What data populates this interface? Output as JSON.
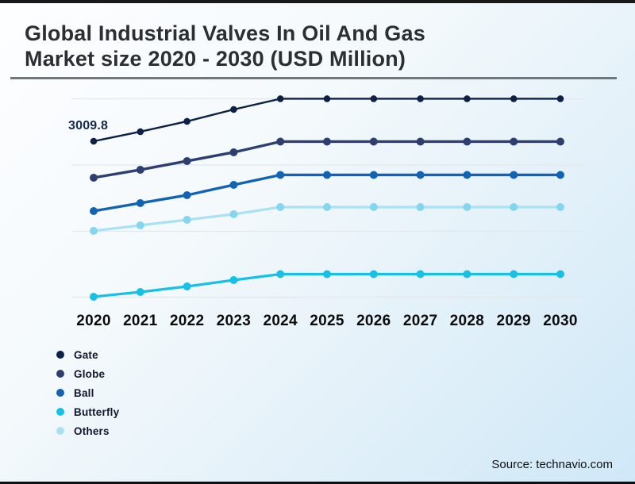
{
  "header": {
    "title_line1": "Global Industrial Valves In Oil And Gas",
    "title_line2": "Market size 2020 - 2030 (USD Million)"
  },
  "chart_data": {
    "type": "line",
    "title": "Global Industrial Valves In Oil And Gas Market size 2020 - 2030 (USD Million)",
    "unit": "USD Million",
    "x": [
      2020,
      2021,
      2022,
      2023,
      2024,
      2025,
      2026,
      2027,
      2028,
      2029,
      2030
    ],
    "series": [
      {
        "name": "Gate",
        "color": "#0c2146",
        "values": [
          3009.8,
          3154,
          3310,
          3490,
          3652,
          3652,
          3652,
          3652,
          3652,
          3652,
          3652
        ]
      },
      {
        "name": "Globe",
        "color": "#2e3e70",
        "values": [
          2458,
          2578,
          2710,
          2842,
          3004,
          3004,
          3004,
          3004,
          3004,
          3004,
          3004
        ]
      },
      {
        "name": "Ball",
        "color": "#1363b4",
        "values": [
          1954,
          2074,
          2194,
          2350,
          2500,
          2500,
          2500,
          2500,
          2500,
          2500,
          2500
        ]
      },
      {
        "name": "Butterfly",
        "color": "#17c0e5",
        "values": [
          658,
          730,
          814,
          910,
          1000,
          1000,
          1000,
          1000,
          1000,
          1000,
          1000
        ]
      },
      {
        "name": "Others",
        "color": "#a9e2f5",
        "dot_color": "#84d6ef",
        "values": [
          1654,
          1738,
          1822,
          1906,
          2014,
          2014,
          2014,
          2014,
          2014,
          2014,
          2014
        ]
      }
    ],
    "data_label": {
      "series": "Gate",
      "year": 2020,
      "text": "3009.8"
    },
    "grid": true,
    "legend_position": "bottom-left",
    "x_axis_labels": [
      "2020",
      "2021",
      "2022",
      "2023",
      "2024",
      "2025",
      "2026",
      "2027",
      "2028",
      "2029",
      "2030"
    ]
  },
  "footer": {
    "source": "Source: technavio.com"
  }
}
